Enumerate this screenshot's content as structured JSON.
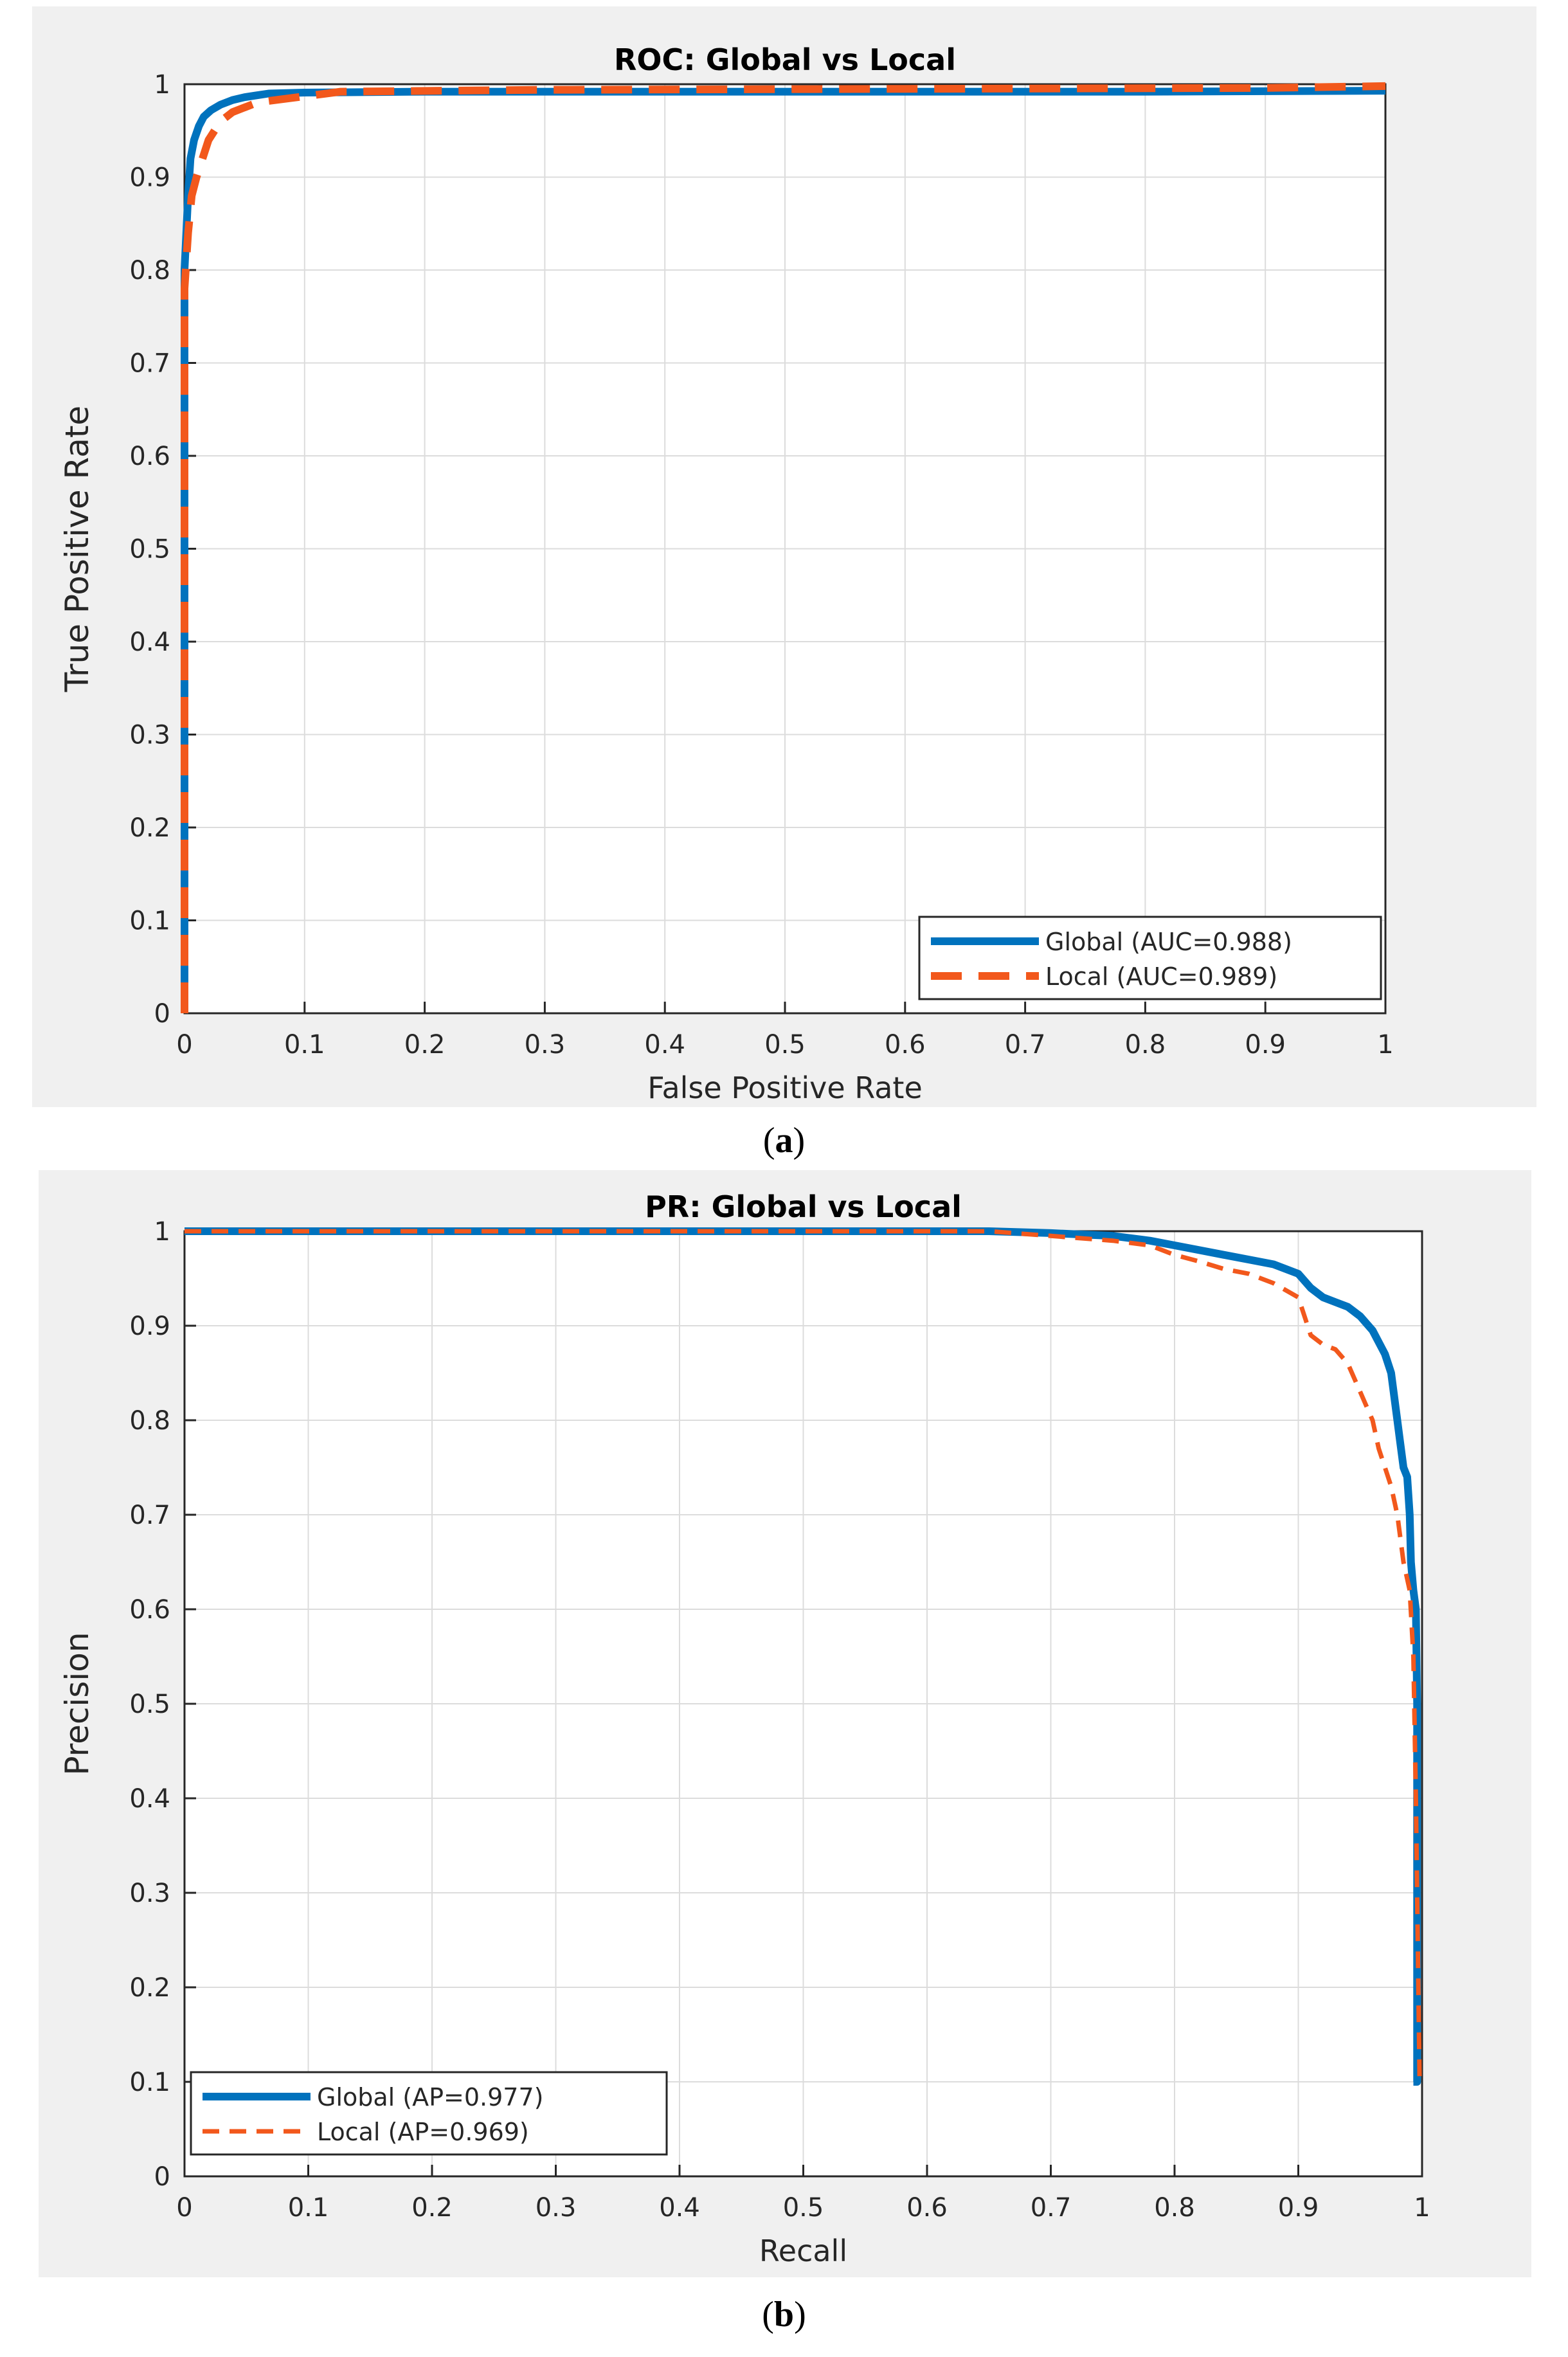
{
  "captions": {
    "a_open": "(",
    "a_letter": "a",
    "a_close": ")",
    "b_open": "(",
    "b_letter": "b",
    "b_close": ")"
  },
  "colors": {
    "global": "#0072BD",
    "local": "#F2581C",
    "panel_bg": "#f0f0f0",
    "grid": "#dcdcdc"
  },
  "chart_data": [
    {
      "type": "line",
      "title": "ROC: Global vs Local",
      "xlabel": "False Positive Rate",
      "ylabel": "True Positive Rate",
      "xlim": [
        0,
        1
      ],
      "ylim": [
        0,
        1
      ],
      "xticks": [
        "0",
        "0.1",
        "0.2",
        "0.3",
        "0.4",
        "0.5",
        "0.6",
        "0.7",
        "0.8",
        "0.9",
        "1"
      ],
      "yticks": [
        "0",
        "0.1",
        "0.2",
        "0.3",
        "0.4",
        "0.5",
        "0.6",
        "0.7",
        "0.8",
        "0.9",
        "1"
      ],
      "grid": true,
      "legend": "bottom-right",
      "series": [
        {
          "name": "Global (AUC=0.988)",
          "style": "solid",
          "x": [
            0,
            0,
            0.003,
            0.005,
            0.008,
            0.012,
            0.016,
            0.022,
            0.03,
            0.04,
            0.05,
            0.06,
            0.07,
            0.1,
            0.2,
            0.5,
            0.8,
            1.0
          ],
          "y": [
            0,
            0.8,
            0.88,
            0.92,
            0.94,
            0.955,
            0.965,
            0.972,
            0.978,
            0.983,
            0.986,
            0.988,
            0.99,
            0.991,
            0.992,
            0.992,
            0.992,
            0.993
          ]
        },
        {
          "name": "Local (AUC=0.989)",
          "style": "dashed",
          "x": [
            0,
            0,
            0.003,
            0.006,
            0.01,
            0.015,
            0.02,
            0.03,
            0.04,
            0.05,
            0.06,
            0.07,
            0.1,
            0.13,
            0.3,
            0.6,
            0.9,
            1.0
          ],
          "y": [
            0,
            0.78,
            0.84,
            0.88,
            0.9,
            0.92,
            0.94,
            0.96,
            0.97,
            0.975,
            0.98,
            0.982,
            0.987,
            0.992,
            0.994,
            0.995,
            0.996,
            0.998
          ]
        }
      ]
    },
    {
      "type": "line",
      "title": "PR: Global vs Local",
      "xlabel": "Recall",
      "ylabel": "Precision",
      "xlim": [
        0,
        1
      ],
      "ylim": [
        0,
        1
      ],
      "xticks": [
        "0",
        "0.1",
        "0.2",
        "0.3",
        "0.4",
        "0.5",
        "0.6",
        "0.7",
        "0.8",
        "0.9",
        "1"
      ],
      "yticks": [
        "0",
        "0.1",
        "0.2",
        "0.3",
        "0.4",
        "0.5",
        "0.6",
        "0.7",
        "0.8",
        "0.9",
        "1"
      ],
      "grid": true,
      "legend": "bottom-left",
      "series": [
        {
          "name": "Global (AP=0.977)",
          "style": "solid",
          "x": [
            0,
            0.6,
            0.65,
            0.7,
            0.75,
            0.78,
            0.8,
            0.82,
            0.84,
            0.86,
            0.88,
            0.9,
            0.91,
            0.92,
            0.93,
            0.94,
            0.95,
            0.96,
            0.97,
            0.975,
            0.98,
            0.982,
            0.985,
            0.988,
            0.99,
            0.991,
            0.993,
            0.995,
            0.996,
            0.996,
            0.993
          ],
          "y": [
            1,
            1,
            1,
            0.998,
            0.995,
            0.99,
            0.985,
            0.98,
            0.975,
            0.97,
            0.965,
            0.955,
            0.94,
            0.93,
            0.925,
            0.92,
            0.91,
            0.895,
            0.87,
            0.85,
            0.8,
            0.78,
            0.75,
            0.74,
            0.7,
            0.65,
            0.62,
            0.6,
            0.5,
            0.1,
            0.1
          ]
        },
        {
          "name": "Local (AP=0.969)",
          "style": "dashed",
          "x": [
            0,
            0.6,
            0.65,
            0.7,
            0.75,
            0.78,
            0.8,
            0.82,
            0.84,
            0.86,
            0.88,
            0.9,
            0.91,
            0.92,
            0.93,
            0.94,
            0.95,
            0.96,
            0.965,
            0.97,
            0.975,
            0.98,
            0.985,
            0.99,
            0.993,
            0.995,
            0.997,
            0.998,
            1.0
          ],
          "y": [
            1,
            1,
            1,
            0.995,
            0.99,
            0.985,
            0.975,
            0.968,
            0.96,
            0.955,
            0.945,
            0.93,
            0.89,
            0.88,
            0.875,
            0.86,
            0.83,
            0.8,
            0.77,
            0.75,
            0.73,
            0.7,
            0.65,
            0.62,
            0.55,
            0.4,
            0.2,
            0.1,
            0.1
          ]
        }
      ]
    }
  ]
}
